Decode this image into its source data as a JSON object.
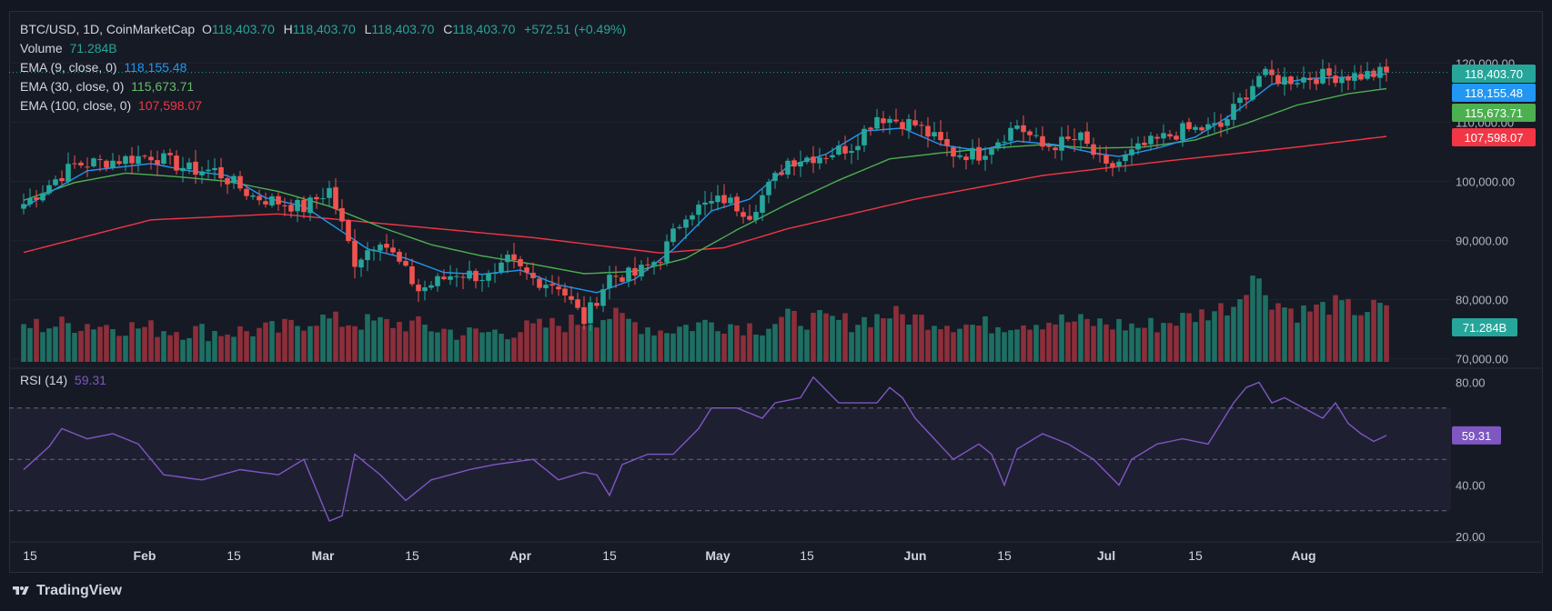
{
  "header": {
    "symbol": "BTC/USD, 1D, CoinMarketCap",
    "o_label": "O",
    "o_value": "118,403.70",
    "h_label": "H",
    "h_value": "118,403.70",
    "l_label": "L",
    "l_value": "118,403.70",
    "c_label": "C",
    "c_value": "118,403.70",
    "change": "+572.51 (+0.49%)"
  },
  "indicators": {
    "volume_label": "Volume",
    "volume_value": "71.284B",
    "ema9_label": "EMA (9, close, 0)",
    "ema9_value": "118,155.48",
    "ema30_label": "EMA (30, close, 0)",
    "ema30_value": "115,673.71",
    "ema100_label": "EMA (100, close, 0)",
    "ema100_value": "107,598.07",
    "rsi_label": "RSI (14)",
    "rsi_value": "59.31"
  },
  "colors": {
    "up": "#26a69a",
    "down": "#ef5350",
    "ema9": "#2196f3",
    "ema30": "#4caf50",
    "ema100": "#f23645",
    "rsi": "#7e57c2",
    "volume_up": "#1e6f63",
    "volume_down": "#8c2f3a"
  },
  "footer": {
    "brand": "TradingView"
  },
  "chart_data": [
    {
      "type": "candlestick",
      "title": "BTC/USD, 1D, CoinMarketCap",
      "price_axis_ticks": [
        "120,000.00",
        "110,000.00",
        "100,000.00",
        "90,000.00",
        "80,000.00",
        "70,000.00"
      ],
      "ylim": [
        69500,
        124500
      ],
      "time_axis_ticks": [
        "15",
        "Feb",
        "15",
        "Mar",
        "15",
        "Apr",
        "15",
        "May",
        "15",
        "Jun",
        "15",
        "Jul",
        "15",
        "Aug"
      ],
      "last_values": {
        "close": "118,403.70",
        "ema9": "118,155.48",
        "ema30": "115,673.71",
        "ema100": "107,598.07",
        "volume": "71.284B"
      },
      "anchors": {
        "close": [
          [
            0,
            96200
          ],
          [
            8,
            102800
          ],
          [
            14,
            103500
          ],
          [
            20,
            104400
          ],
          [
            26,
            102000
          ],
          [
            30,
            101800
          ],
          [
            36,
            97500
          ],
          [
            44,
            95500
          ],
          [
            48,
            98600
          ],
          [
            52,
            86500
          ],
          [
            56,
            90500
          ],
          [
            62,
            81600
          ],
          [
            68,
            84600
          ],
          [
            74,
            83600
          ],
          [
            76,
            86500
          ],
          [
            80,
            83500
          ],
          [
            84,
            82500
          ],
          [
            88,
            76500
          ],
          [
            92,
            84000
          ],
          [
            96,
            84200
          ],
          [
            100,
            87200
          ],
          [
            104,
            94800
          ],
          [
            110,
            97000
          ],
          [
            114,
            94600
          ],
          [
            120,
            103500
          ],
          [
            126,
            104600
          ],
          [
            130,
            106000
          ],
          [
            134,
            111100
          ],
          [
            140,
            109600
          ],
          [
            146,
            104800
          ],
          [
            150,
            104600
          ],
          [
            156,
            109600
          ],
          [
            160,
            105800
          ],
          [
            166,
            107200
          ],
          [
            170,
            102000
          ],
          [
            176,
            106000
          ],
          [
            182,
            108600
          ],
          [
            188,
            109200
          ],
          [
            194,
            117900
          ],
          [
            198,
            117200
          ],
          [
            204,
            117800
          ],
          [
            210,
            117900
          ],
          [
            214,
            118403.7
          ]
        ],
        "ema9": [
          [
            0,
            95600
          ],
          [
            10,
            101800
          ],
          [
            20,
            103000
          ],
          [
            26,
            101800
          ],
          [
            32,
            101000
          ],
          [
            38,
            97200
          ],
          [
            44,
            95800
          ],
          [
            50,
            91500
          ],
          [
            54,
            88600
          ],
          [
            60,
            87000
          ],
          [
            66,
            84600
          ],
          [
            72,
            84300
          ],
          [
            78,
            85000
          ],
          [
            84,
            82500
          ],
          [
            90,
            81200
          ],
          [
            96,
            83500
          ],
          [
            102,
            88500
          ],
          [
            108,
            95000
          ],
          [
            114,
            97000
          ],
          [
            120,
            102500
          ],
          [
            126,
            104600
          ],
          [
            132,
            108500
          ],
          [
            138,
            109000
          ],
          [
            144,
            106200
          ],
          [
            150,
            105200
          ],
          [
            156,
            106800
          ],
          [
            162,
            106200
          ],
          [
            168,
            104800
          ],
          [
            172,
            104200
          ],
          [
            178,
            105600
          ],
          [
            184,
            107500
          ],
          [
            190,
            111500
          ],
          [
            196,
            116400
          ],
          [
            202,
            117400
          ],
          [
            208,
            117600
          ],
          [
            214,
            118155.48
          ]
        ],
        "ema30": [
          [
            0,
            96800
          ],
          [
            8,
            99800
          ],
          [
            16,
            101400
          ],
          [
            24,
            100800
          ],
          [
            32,
            100000
          ],
          [
            40,
            98300
          ],
          [
            48,
            95800
          ],
          [
            56,
            92300
          ],
          [
            64,
            89300
          ],
          [
            72,
            87400
          ],
          [
            80,
            86000
          ],
          [
            88,
            84400
          ],
          [
            96,
            84800
          ],
          [
            104,
            87000
          ],
          [
            112,
            91800
          ],
          [
            120,
            96200
          ],
          [
            128,
            100200
          ],
          [
            136,
            103800
          ],
          [
            144,
            104800
          ],
          [
            152,
            105600
          ],
          [
            160,
            106200
          ],
          [
            168,
            105600
          ],
          [
            176,
            105800
          ],
          [
            184,
            107000
          ],
          [
            192,
            109800
          ],
          [
            200,
            112900
          ],
          [
            208,
            114800
          ],
          [
            214,
            115673.71
          ]
        ],
        "ema100": [
          [
            0,
            88000
          ],
          [
            20,
            93500
          ],
          [
            40,
            94500
          ],
          [
            60,
            92500
          ],
          [
            80,
            90500
          ],
          [
            100,
            87900
          ],
          [
            110,
            88800
          ],
          [
            120,
            92000
          ],
          [
            140,
            97000
          ],
          [
            160,
            101000
          ],
          [
            180,
            103500
          ],
          [
            200,
            105800
          ],
          [
            214,
            107598.07
          ]
        ],
        "volume_billion": [
          [
            0,
            45
          ],
          [
            10,
            48
          ],
          [
            20,
            42
          ],
          [
            30,
            38
          ],
          [
            40,
            40
          ],
          [
            46,
            55
          ],
          [
            50,
            50
          ],
          [
            60,
            48
          ],
          [
            70,
            35
          ],
          [
            80,
            42
          ],
          [
            88,
            52
          ],
          [
            92,
            58
          ],
          [
            100,
            40
          ],
          [
            108,
            50
          ],
          [
            116,
            44
          ],
          [
            120,
            55
          ],
          [
            130,
            50
          ],
          [
            136,
            60
          ],
          [
            140,
            55
          ],
          [
            150,
            45
          ],
          [
            156,
            50
          ],
          [
            162,
            52
          ],
          [
            170,
            48
          ],
          [
            176,
            44
          ],
          [
            184,
            58
          ],
          [
            190,
            72
          ],
          [
            193,
            110
          ],
          [
            196,
            78
          ],
          [
            200,
            62
          ],
          [
            206,
            72
          ],
          [
            210,
            64
          ],
          [
            214,
            71.284
          ]
        ]
      },
      "candle_count": 215
    },
    {
      "type": "line",
      "title": "RSI (14)",
      "ylim": [
        20,
        83
      ],
      "y_axis_ticks": [
        "80.00",
        "40.00",
        "20.00"
      ],
      "bands": {
        "upper": 70,
        "middle": 50,
        "lower": 30
      },
      "last_value": "59.31",
      "anchors": [
        [
          0,
          46
        ],
        [
          4,
          55
        ],
        [
          6,
          62
        ],
        [
          10,
          58
        ],
        [
          14,
          60
        ],
        [
          18,
          56
        ],
        [
          22,
          44
        ],
        [
          28,
          42
        ],
        [
          34,
          46
        ],
        [
          40,
          44
        ],
        [
          44,
          50
        ],
        [
          46,
          38
        ],
        [
          48,
          26
        ],
        [
          50,
          28
        ],
        [
          52,
          52
        ],
        [
          56,
          44
        ],
        [
          60,
          34
        ],
        [
          64,
          42
        ],
        [
          70,
          46
        ],
        [
          74,
          48
        ],
        [
          80,
          50
        ],
        [
          84,
          42
        ],
        [
          88,
          45
        ],
        [
          90,
          44
        ],
        [
          92,
          36
        ],
        [
          94,
          48
        ],
        [
          98,
          52
        ],
        [
          102,
          52
        ],
        [
          106,
          62
        ],
        [
          108,
          70
        ],
        [
          112,
          70
        ],
        [
          116,
          66
        ],
        [
          118,
          72
        ],
        [
          122,
          74
        ],
        [
          124,
          82
        ],
        [
          128,
          72
        ],
        [
          134,
          72
        ],
        [
          136,
          78
        ],
        [
          138,
          74
        ],
        [
          140,
          66
        ],
        [
          146,
          50
        ],
        [
          150,
          56
        ],
        [
          152,
          52
        ],
        [
          154,
          40
        ],
        [
          156,
          54
        ],
        [
          160,
          60
        ],
        [
          164,
          56
        ],
        [
          168,
          50
        ],
        [
          172,
          40
        ],
        [
          174,
          50
        ],
        [
          178,
          56
        ],
        [
          182,
          58
        ],
        [
          186,
          56
        ],
        [
          190,
          72
        ],
        [
          192,
          78
        ],
        [
          194,
          80
        ],
        [
          196,
          72
        ],
        [
          198,
          74
        ],
        [
          204,
          66
        ],
        [
          206,
          72
        ],
        [
          208,
          64
        ],
        [
          210,
          60
        ],
        [
          212,
          57
        ],
        [
          214,
          59.31
        ]
      ],
      "series": [
        {
          "name": "RSI (14)",
          "values_ref": "anchors"
        }
      ]
    }
  ]
}
